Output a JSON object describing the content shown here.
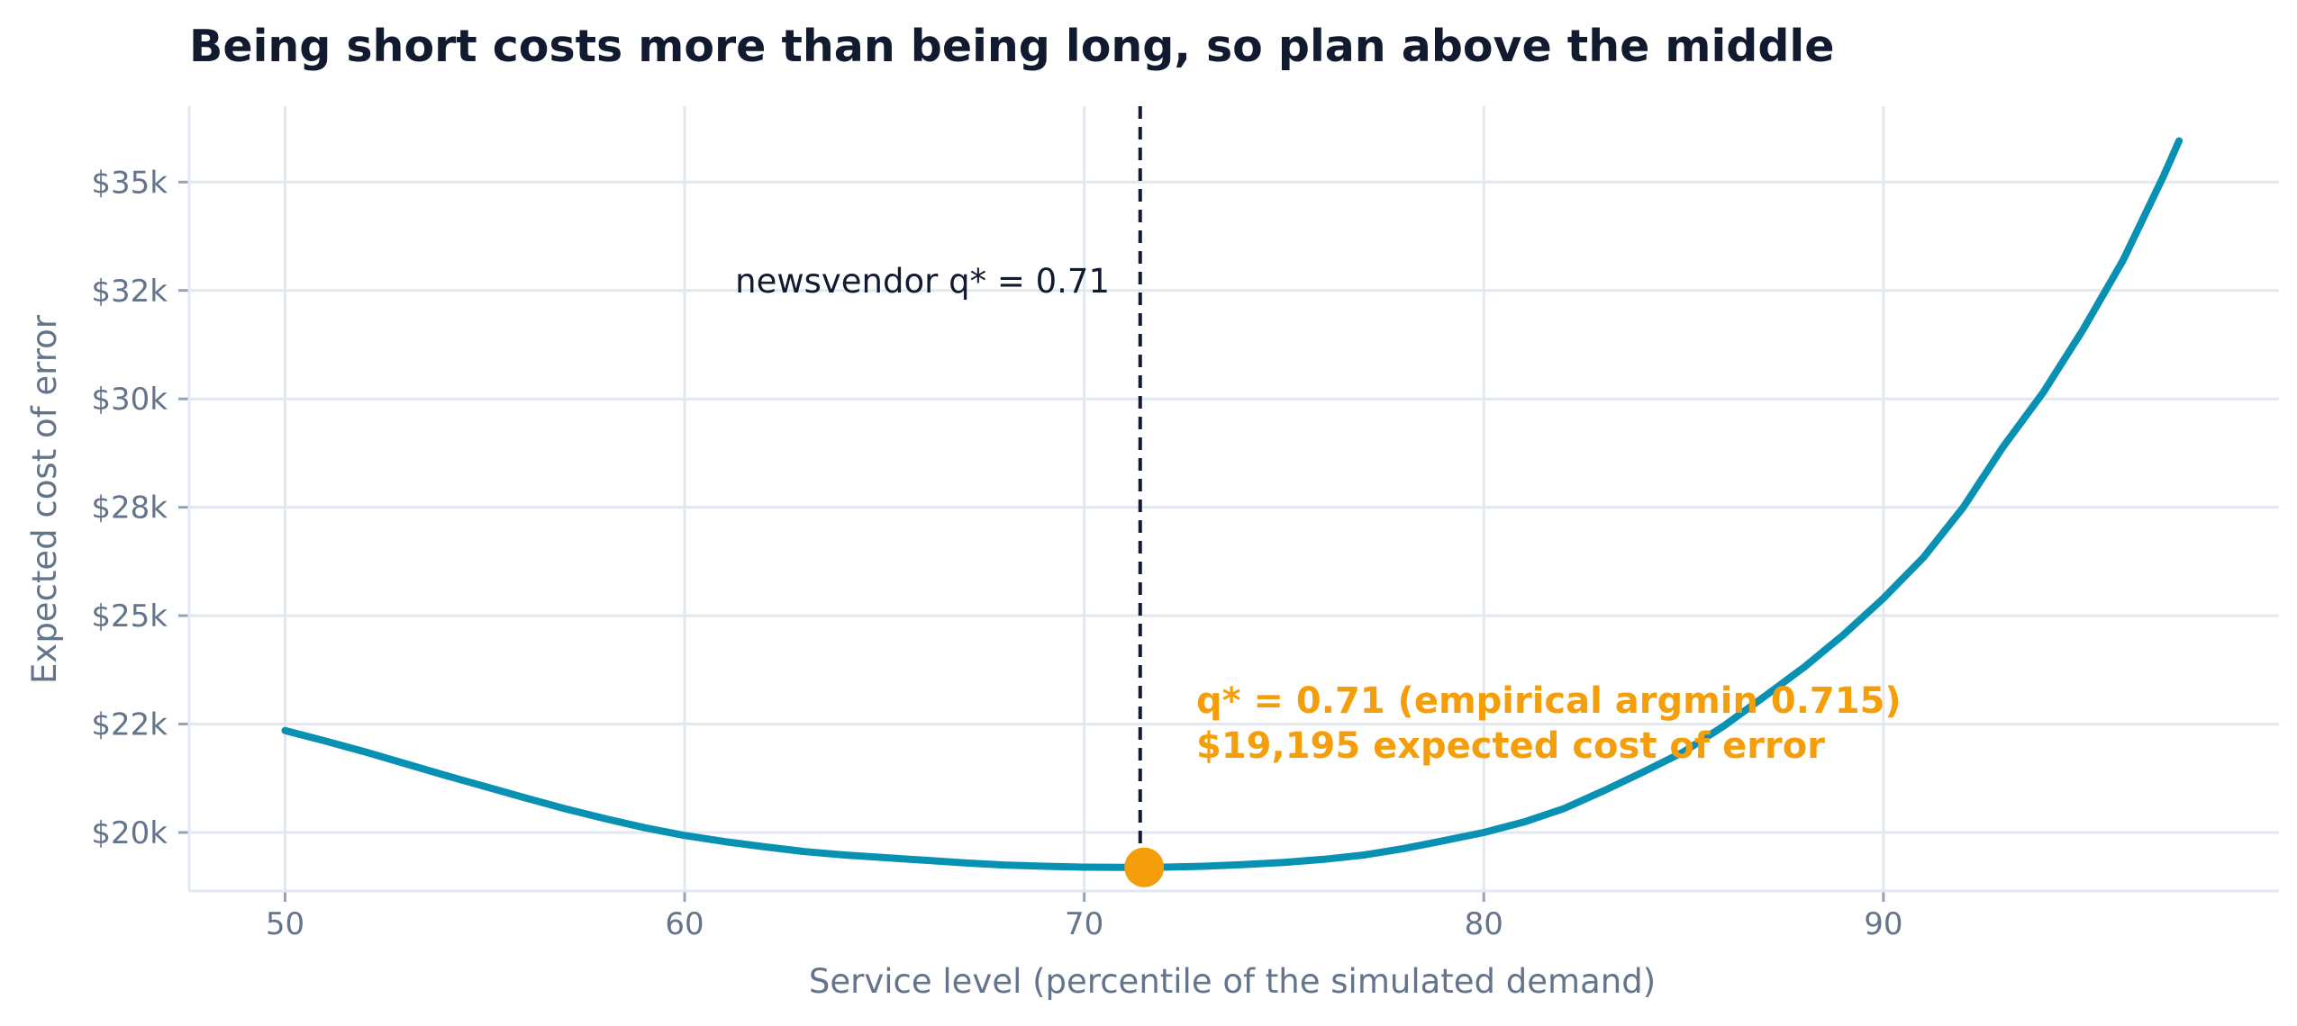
{
  "chart_data": {
    "type": "line",
    "title": "Being short costs more than being long, so plan above the middle",
    "xlabel": "Service level (percentile of the simulated demand)",
    "ylabel": "Expected cost of error",
    "xlim": [
      47.6,
      99.9
    ],
    "ylim": [
      18650,
      36750
    ],
    "x_ticks": [
      50,
      60,
      70,
      80,
      90
    ],
    "x_tick_labels": [
      "50",
      "60",
      "70",
      "80",
      "90"
    ],
    "y_ticks": [
      20000,
      22500,
      25000,
      27500,
      30000,
      32500,
      35000
    ],
    "y_tick_labels": [
      "$20k",
      "$22k",
      "$25k",
      "$28k",
      "$30k",
      "$32k",
      "$35k"
    ],
    "grid": true,
    "series": [
      {
        "x": [
          50,
          51,
          52,
          53,
          54,
          55,
          56,
          57,
          58,
          59,
          60,
          61,
          62,
          63,
          64,
          65,
          66,
          67,
          68,
          69,
          70,
          71,
          71.5,
          72,
          73,
          74,
          75,
          76,
          77,
          78,
          79,
          80,
          81,
          82,
          83,
          84,
          85,
          86,
          87,
          88,
          89,
          90,
          91,
          92,
          93,
          94,
          95,
          96,
          97,
          97.4
        ],
        "y": [
          22350,
          22110,
          21860,
          21590,
          21320,
          21060,
          20800,
          20550,
          20320,
          20110,
          19930,
          19790,
          19670,
          19560,
          19480,
          19420,
          19360,
          19300,
          19250,
          19220,
          19200,
          19195,
          19195,
          19200,
          19220,
          19260,
          19310,
          19380,
          19480,
          19630,
          19810,
          20000,
          20240,
          20550,
          20960,
          21400,
          21860,
          22450,
          23120,
          23800,
          24560,
          25400,
          26340,
          27500,
          28900,
          30150,
          31600,
          33200,
          35120,
          35950
        ],
        "color": "#0891b2"
      }
    ],
    "reference_line": {
      "x": 71.4,
      "label": "newsvendor q* = 0.71",
      "color": "#111a2e"
    },
    "highlight_point": {
      "x": 71.5,
      "y": 19195,
      "color": "#f59e0b"
    },
    "annotation": {
      "lines": [
        "q* = 0.71 (empirical argmin 0.715)",
        "$19,195 expected cost of error"
      ],
      "color": "#f59e0b"
    }
  }
}
